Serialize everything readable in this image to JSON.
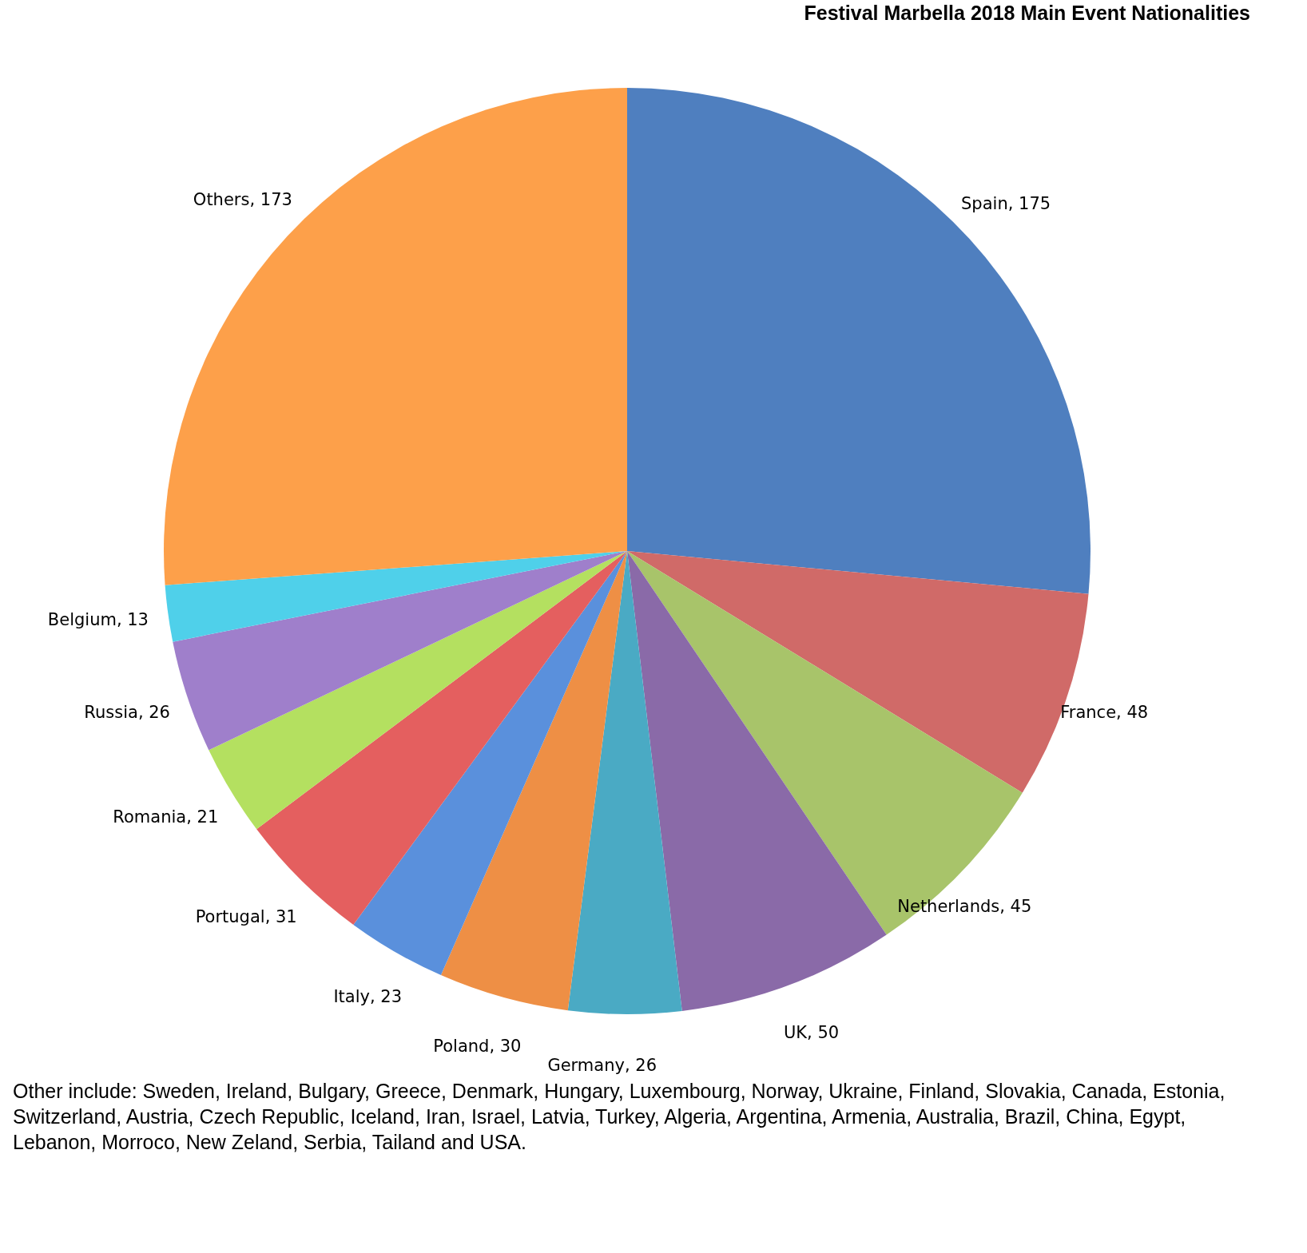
{
  "chart_data": {
    "type": "pie",
    "title": "Festival Marbella 2018 Main Event Nationalities",
    "categories": [
      "Spain",
      "France",
      "Netherlands",
      "UK",
      "Germany",
      "Poland",
      "Italy",
      "Portugal",
      "Romania",
      "Russia",
      "Belgium",
      "Others"
    ],
    "values": [
      175,
      48,
      45,
      50,
      26,
      30,
      23,
      31,
      21,
      26,
      13,
      173
    ],
    "colors": [
      "#4f7fbf",
      "#d06a68",
      "#a8c46a",
      "#8a6aa8",
      "#4aaac4",
      "#ee8f45",
      "#5a90dc",
      "#e45f5f",
      "#b4e060",
      "#9f7fcb",
      "#4fd0ea",
      "#fda04a"
    ],
    "value_labels": [
      ", 175",
      ", 48",
      ", 45",
      ", 50",
      ", 26",
      ", 30",
      ", 23",
      ", 31",
      ", 21",
      ", 26",
      ", 13",
      ", 173"
    ],
    "annotations": [
      "Other include: Sweden, Ireland, Bulgary, Greece, Denmark, Hungary, Luxembourg, Norway, Ukraine, Finland, Slovakia, Canada, Estonia, Switzerland, Austria, Czech Republic, Iceland, Iran, Israel, Latvia, Turkey, Algeria, Argentina, Armenia, Australia, Brazil, China, Egypt, Lebanon, Morroco, New Zeland, Serbia, Tailand and USA."
    ]
  }
}
